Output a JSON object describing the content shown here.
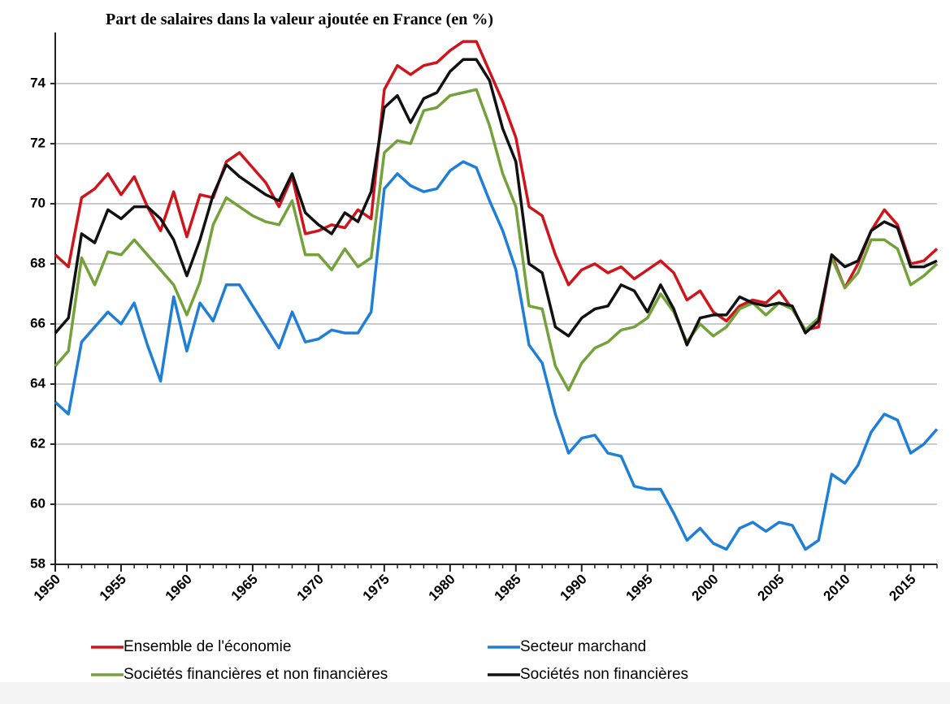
{
  "chart_data": {
    "type": "line",
    "title": "Part de salaires dans la valeur ajoutée en France (en %)",
    "x": [
      1950,
      1951,
      1952,
      1953,
      1954,
      1955,
      1956,
      1957,
      1958,
      1959,
      1960,
      1961,
      1962,
      1963,
      1964,
      1965,
      1966,
      1967,
      1968,
      1969,
      1970,
      1971,
      1972,
      1973,
      1974,
      1975,
      1976,
      1977,
      1978,
      1979,
      1980,
      1981,
      1982,
      1983,
      1984,
      1985,
      1986,
      1987,
      1988,
      1989,
      1990,
      1991,
      1992,
      1993,
      1994,
      1995,
      1996,
      1997,
      1998,
      1999,
      2000,
      2001,
      2002,
      2003,
      2004,
      2005,
      2006,
      2007,
      2008,
      2009,
      2010,
      2011,
      2012,
      2013,
      2014,
      2015,
      2016,
      2017
    ],
    "xlim": [
      1950,
      2017
    ],
    "xticks": [
      1950,
      1955,
      1960,
      1965,
      1970,
      1975,
      1980,
      1985,
      1990,
      1995,
      2000,
      2005,
      2010,
      2015
    ],
    "ylim": [
      58,
      75.7
    ],
    "yticks": [
      58,
      60,
      62,
      64,
      66,
      68,
      70,
      72,
      74
    ],
    "grid": true,
    "legend": "bottom",
    "series": [
      {
        "name": "Ensemble de l'économie",
        "color": "#d0141c",
        "values": [
          68.3,
          67.9,
          70.2,
          70.5,
          71.0,
          70.3,
          70.9,
          69.9,
          69.1,
          70.4,
          68.9,
          70.3,
          70.2,
          71.4,
          71.7,
          71.2,
          70.7,
          69.9,
          70.9,
          69.0,
          69.1,
          69.3,
          69.2,
          69.8,
          69.5,
          73.8,
          74.6,
          74.3,
          74.6,
          74.7,
          75.1,
          75.4,
          75.4,
          74.4,
          73.4,
          72.2,
          69.9,
          69.6,
          68.3,
          67.3,
          67.8,
          68.0,
          67.7,
          67.9,
          67.5,
          67.8,
          68.1,
          67.7,
          66.8,
          67.1,
          66.4,
          66.1,
          66.6,
          66.8,
          66.7,
          67.1,
          66.5,
          65.8,
          65.9,
          68.3,
          67.2,
          68.0,
          69.1,
          69.8,
          69.3,
          68.0,
          68.1,
          68.5
        ]
      },
      {
        "name": "Secteur marchand",
        "color": "#1f7fd6",
        "values": [
          63.4,
          63.0,
          65.4,
          65.9,
          66.4,
          66.0,
          66.7,
          65.3,
          64.1,
          66.9,
          65.1,
          66.7,
          66.1,
          67.3,
          67.3,
          66.6,
          65.9,
          65.2,
          66.4,
          65.4,
          65.5,
          65.8,
          65.7,
          65.7,
          66.4,
          70.5,
          71.0,
          70.6,
          70.4,
          70.5,
          71.1,
          71.4,
          71.2,
          70.1,
          69.1,
          67.8,
          65.3,
          64.7,
          63.0,
          61.7,
          62.2,
          62.3,
          61.7,
          61.6,
          60.6,
          60.5,
          60.5,
          59.7,
          58.8,
          59.2,
          58.7,
          58.5,
          59.2,
          59.4,
          59.1,
          59.4,
          59.3,
          58.5,
          58.8,
          61.0,
          60.7,
          61.3,
          62.4,
          63.0,
          62.8,
          61.7,
          62.0,
          62.5
        ]
      },
      {
        "name": "Sociétés financières et non financières",
        "color": "#73a23a",
        "values": [
          64.6,
          65.1,
          68.2,
          67.3,
          68.4,
          68.3,
          68.8,
          68.3,
          67.8,
          67.3,
          66.3,
          67.4,
          69.3,
          70.2,
          69.9,
          69.6,
          69.4,
          69.3,
          70.1,
          68.3,
          68.3,
          67.8,
          68.5,
          67.9,
          68.2,
          71.7,
          72.1,
          72.0,
          73.1,
          73.2,
          73.6,
          73.7,
          73.8,
          72.6,
          71.0,
          69.9,
          66.6,
          66.5,
          64.6,
          63.8,
          64.7,
          65.2,
          65.4,
          65.8,
          65.9,
          66.2,
          67.0,
          66.4,
          65.4,
          66.0,
          65.6,
          65.9,
          66.5,
          66.7,
          66.3,
          66.7,
          66.5,
          65.8,
          66.2,
          68.2,
          67.2,
          67.7,
          68.8,
          68.8,
          68.5,
          67.3,
          67.6,
          68.0
        ]
      },
      {
        "name": "Sociétés non financières",
        "color": "#111111",
        "values": [
          65.7,
          66.2,
          69.0,
          68.7,
          69.8,
          69.5,
          69.9,
          69.9,
          69.5,
          68.8,
          67.6,
          68.8,
          70.3,
          71.3,
          70.9,
          70.6,
          70.3,
          70.1,
          71.0,
          69.7,
          69.3,
          69.0,
          69.7,
          69.4,
          70.4,
          73.2,
          73.6,
          72.7,
          73.5,
          73.7,
          74.4,
          74.8,
          74.8,
          74.1,
          72.5,
          71.4,
          68.0,
          67.7,
          65.9,
          65.6,
          66.2,
          66.5,
          66.6,
          67.3,
          67.1,
          66.4,
          67.3,
          66.5,
          65.3,
          66.2,
          66.3,
          66.3,
          66.9,
          66.7,
          66.6,
          66.7,
          66.6,
          65.7,
          66.1,
          68.3,
          67.9,
          68.1,
          69.1,
          69.4,
          69.2,
          67.9,
          67.9,
          68.1
        ]
      }
    ]
  }
}
